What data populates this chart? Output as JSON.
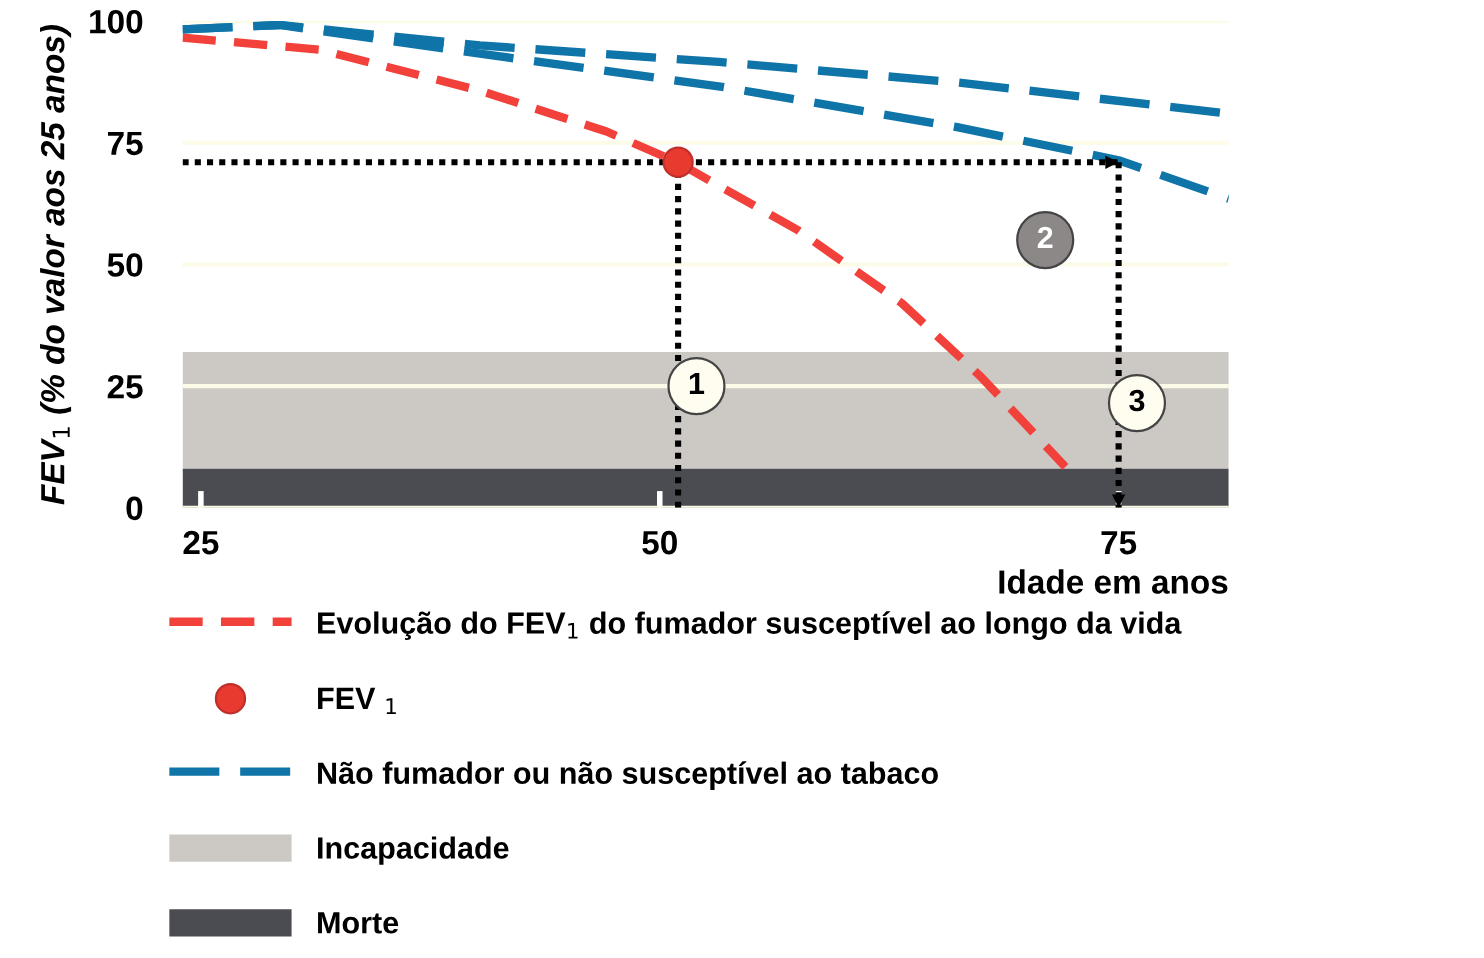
{
  "chart_data": {
    "type": "line",
    "ylabel": "FEV$_{1}$ (% do valor aos 25 anos)",
    "xlabel": "Idade em anos",
    "xlim": [
      24,
      81
    ],
    "xticks": [
      25,
      50,
      75
    ],
    "ylim": [
      0,
      100
    ],
    "yticks": [
      0,
      25,
      50,
      75,
      100
    ],
    "grid": "y",
    "legend": "bottom",
    "series": [
      {
        "name": "Evolução do FEV$_{1}$ do fumador susceptível ao longo da vida",
        "color": "#f2403a",
        "line_style": "dashed",
        "marker": "none",
        "x": [
          24,
          31.5,
          40.2,
          47.1,
          50.9,
          57.5,
          63.2,
          67.5,
          72.1
        ],
        "values": [
          96.6,
          94.1,
          85.7,
          77.3,
          71.1,
          57.1,
          42,
          26.9,
          8.4
        ]
      },
      {
        "name": "FEV $_{1}$",
        "type": "scatter",
        "color": "#e83a2f",
        "marker": "circle",
        "x": [
          51
        ],
        "values": [
          71
        ]
      },
      {
        "name": "Não fumador ou não susceptível ao tabaco",
        "color": "#0f75a8",
        "line_style": "dashed",
        "marker": "none",
        "x": [
          24,
          29.3,
          40.2,
          53.2,
          66.2,
          81
        ],
        "values": [
          98.3,
          99.2,
          95,
          91.6,
          87.4,
          81
        ]
      },
      {
        "color": "#0f75a8",
        "line_style": "dashed",
        "marker": "none",
        "x": [
          24,
          29.3,
          40.2,
          53.2,
          66.2,
          75,
          81
        ],
        "values": [
          98.3,
          99.2,
          93.3,
          86.6,
          78.2,
          71.4,
          63.5
        ]
      },
      {
        "color": "#000000",
        "line_style": "dotted",
        "marker": "none",
        "x": [
          24,
          75
        ],
        "values": [
          71,
          71
        ]
      },
      {
        "color": "#000000",
        "line_style": "dotted",
        "marker": "none",
        "x": [
          51,
          51
        ],
        "values": [
          0,
          71
        ]
      },
      {
        "color": "#000000",
        "line_style": "dotted",
        "marker": "none",
        "x": [
          75,
          75
        ],
        "values": [
          71,
          0
        ]
      }
    ],
    "bands": [
      {
        "axis": "y",
        "from": 8,
        "to": 32,
        "label": "Incapacidade",
        "color": "#ccc9c4"
      },
      {
        "axis": "y",
        "from": 0,
        "to": 8,
        "label": "Morte",
        "color": "#4b4c52"
      }
    ],
    "annotations": [
      {
        "text": "1",
        "x": 52,
        "y": 25
      },
      {
        "text": "2",
        "x": 71,
        "y": 55
      },
      {
        "text": "3",
        "x": 76,
        "y": 21.5
      }
    ]
  }
}
